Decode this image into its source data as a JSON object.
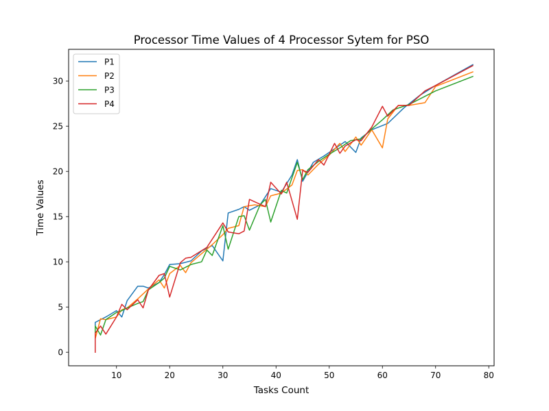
{
  "chart_data": {
    "type": "line",
    "title": "Processor Time Values of 4 Processor Sytem for PSO",
    "xlabel": "Tasks Count",
    "ylabel": "Time Values",
    "xlim": [
      1,
      81
    ],
    "ylim": [
      -1.5,
      33.5
    ],
    "xticks": [
      10,
      20,
      30,
      40,
      50,
      60,
      70,
      80
    ],
    "yticks": [
      0,
      5,
      10,
      15,
      20,
      25,
      30
    ],
    "grid": false,
    "legend_position": "top-left",
    "series": [
      {
        "name": "P1",
        "color": "#1f77b4",
        "points": [
          [
            6,
            0
          ],
          [
            6,
            3.3
          ],
          [
            8,
            3.9
          ],
          [
            10,
            4.6
          ],
          [
            11,
            3.9
          ],
          [
            12,
            5.7
          ],
          [
            14,
            7.3
          ],
          [
            15,
            7.3
          ],
          [
            16,
            7.1
          ],
          [
            18,
            7.7
          ],
          [
            19,
            8.6
          ],
          [
            20,
            9.7
          ],
          [
            22,
            9.8
          ],
          [
            24,
            10.1
          ],
          [
            26,
            11.2
          ],
          [
            28,
            11.8
          ],
          [
            30,
            10.1
          ],
          [
            31,
            15.4
          ],
          [
            33,
            15.8
          ],
          [
            34,
            16.1
          ],
          [
            35,
            15.7
          ],
          [
            37,
            16.3
          ],
          [
            39,
            18.1
          ],
          [
            41,
            17.7
          ],
          [
            43,
            19.6
          ],
          [
            44,
            21.3
          ],
          [
            45,
            18.9
          ],
          [
            47,
            21.0
          ],
          [
            49,
            21.7
          ],
          [
            51,
            22.5
          ],
          [
            53,
            23.3
          ],
          [
            55,
            22.1
          ],
          [
            56,
            23.7
          ],
          [
            58,
            24.6
          ],
          [
            61,
            25.3
          ],
          [
            64,
            27.0
          ],
          [
            67,
            28.4
          ],
          [
            70,
            29.5
          ],
          [
            77,
            31.8
          ]
        ]
      },
      {
        "name": "P2",
        "color": "#ff7f0e",
        "points": [
          [
            6,
            0
          ],
          [
            6,
            1.5
          ],
          [
            7,
            3.7
          ],
          [
            8,
            3.6
          ],
          [
            10,
            3.9
          ],
          [
            11,
            4.7
          ],
          [
            12,
            4.9
          ],
          [
            14,
            5.9
          ],
          [
            16,
            7.0
          ],
          [
            18,
            8.0
          ],
          [
            19,
            7.1
          ],
          [
            20,
            8.7
          ],
          [
            22,
            9.6
          ],
          [
            23,
            8.8
          ],
          [
            24,
            9.9
          ],
          [
            26,
            10.9
          ],
          [
            28,
            11.9
          ],
          [
            30,
            13.0
          ],
          [
            31,
            13.7
          ],
          [
            33,
            14.0
          ],
          [
            34,
            16.1
          ],
          [
            36,
            16.3
          ],
          [
            38,
            16.1
          ],
          [
            39,
            17.3
          ],
          [
            41,
            17.6
          ],
          [
            43,
            18.5
          ],
          [
            44,
            20.1
          ],
          [
            45,
            20.2
          ],
          [
            46,
            19.6
          ],
          [
            48,
            20.8
          ],
          [
            50,
            21.8
          ],
          [
            52,
            23.1
          ],
          [
            53,
            22.2
          ],
          [
            55,
            23.8
          ],
          [
            56,
            22.9
          ],
          [
            58,
            24.6
          ],
          [
            60,
            22.6
          ],
          [
            61,
            25.8
          ],
          [
            63,
            27.3
          ],
          [
            65,
            27.3
          ],
          [
            68,
            27.6
          ],
          [
            70,
            29.4
          ],
          [
            77,
            31.0
          ]
        ]
      },
      {
        "name": "P3",
        "color": "#2ca02c",
        "points": [
          [
            6,
            0
          ],
          [
            6,
            2.9
          ],
          [
            7,
            1.9
          ],
          [
            8,
            3.6
          ],
          [
            10,
            4.4
          ],
          [
            11,
            4.6
          ],
          [
            12,
            4.9
          ],
          [
            14,
            5.4
          ],
          [
            15,
            5.6
          ],
          [
            16,
            6.9
          ],
          [
            18,
            7.7
          ],
          [
            19,
            8.2
          ],
          [
            20,
            9.5
          ],
          [
            22,
            9.1
          ],
          [
            24,
            9.7
          ],
          [
            26,
            10.0
          ],
          [
            27,
            11.3
          ],
          [
            28,
            10.7
          ],
          [
            30,
            14.0
          ],
          [
            31,
            11.4
          ],
          [
            33,
            15.0
          ],
          [
            34,
            15.1
          ],
          [
            35,
            13.5
          ],
          [
            37,
            16.3
          ],
          [
            38,
            16.9
          ],
          [
            39,
            14.4
          ],
          [
            41,
            17.9
          ],
          [
            42,
            17.6
          ],
          [
            44,
            21.0
          ],
          [
            45,
            19.1
          ],
          [
            46,
            20.2
          ],
          [
            48,
            21.1
          ],
          [
            50,
            21.9
          ],
          [
            52,
            22.6
          ],
          [
            54,
            23.4
          ],
          [
            56,
            23.6
          ],
          [
            58,
            24.7
          ],
          [
            60,
            25.7
          ],
          [
            62,
            26.8
          ],
          [
            65,
            27.4
          ],
          [
            70,
            28.9
          ],
          [
            77,
            30.5
          ]
        ]
      },
      {
        "name": "P4",
        "color": "#d62728",
        "points": [
          [
            6,
            0
          ],
          [
            6,
            2.1
          ],
          [
            7,
            2.9
          ],
          [
            8,
            2.0
          ],
          [
            10,
            3.9
          ],
          [
            11,
            5.3
          ],
          [
            12,
            4.7
          ],
          [
            14,
            5.8
          ],
          [
            15,
            4.9
          ],
          [
            16,
            6.9
          ],
          [
            18,
            8.5
          ],
          [
            19,
            8.7
          ],
          [
            20,
            6.1
          ],
          [
            22,
            9.9
          ],
          [
            23,
            10.4
          ],
          [
            24,
            10.5
          ],
          [
            27,
            11.6
          ],
          [
            30,
            14.3
          ],
          [
            31,
            13.3
          ],
          [
            33,
            13.1
          ],
          [
            34,
            13.4
          ],
          [
            35,
            16.9
          ],
          [
            38,
            16.1
          ],
          [
            39,
            18.8
          ],
          [
            41,
            17.5
          ],
          [
            42,
            18.8
          ],
          [
            44,
            14.7
          ],
          [
            45,
            20.1
          ],
          [
            46,
            19.9
          ],
          [
            48,
            21.3
          ],
          [
            49,
            20.7
          ],
          [
            51,
            23.1
          ],
          [
            52,
            22.0
          ],
          [
            53,
            22.8
          ],
          [
            55,
            23.5
          ],
          [
            56,
            23.4
          ],
          [
            58,
            24.9
          ],
          [
            60,
            27.2
          ],
          [
            61,
            26.1
          ],
          [
            63,
            27.3
          ],
          [
            65,
            27.3
          ],
          [
            68,
            28.9
          ],
          [
            70,
            29.5
          ],
          [
            77,
            31.7
          ]
        ]
      }
    ]
  }
}
